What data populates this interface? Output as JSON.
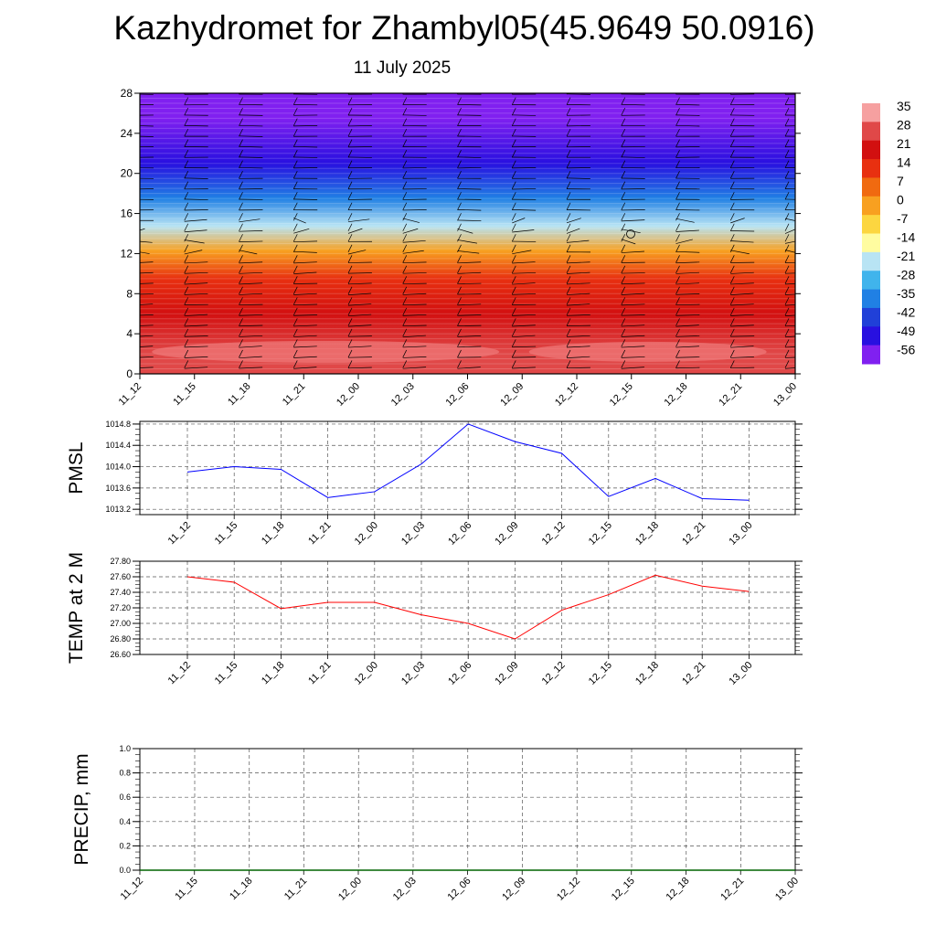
{
  "title": "Kazhydromet for Zhambyl05(45.9649 50.0916)",
  "subtitle": "11 July 2025",
  "colors": {
    "pmsl_line": "#0000ff",
    "temp_line": "#ff0000",
    "precip_line": "#006400",
    "grid": "#555555"
  },
  "colorbar": {
    "labels": [
      "35",
      "28",
      "21",
      "14",
      "7",
      "0",
      "-7",
      "-14",
      "-21",
      "-28",
      "-35",
      "-42",
      "-49",
      "-56"
    ],
    "colors": [
      "#f6a0a0",
      "#e04848",
      "#d21010",
      "#e83010",
      "#f06a10",
      "#f8a020",
      "#fcd640",
      "#fffca0",
      "#b8e4f4",
      "#40b4ec",
      "#2080e4",
      "#2040d8",
      "#2810e0",
      "#8020f0"
    ]
  },
  "chart_data": [
    {
      "type": "heatmap",
      "name": "cross-section",
      "x": [
        "11_12",
        "11_15",
        "11_18",
        "11_21",
        "12_00",
        "12_03",
        "12_06",
        "12_09",
        "12_12",
        "12_15",
        "12_18",
        "12_21",
        "13_00"
      ],
      "ylim": [
        0,
        28
      ],
      "yticks": [
        "0",
        "4",
        "8",
        "12",
        "16",
        "20",
        "24",
        "28"
      ],
      "value_range": [
        -56,
        35
      ],
      "bands": [
        {
          "y": [
            0,
            4
          ],
          "value": 30
        },
        {
          "y": [
            4,
            8
          ],
          "value": 24
        },
        {
          "y": [
            8,
            11
          ],
          "value": 14
        },
        {
          "y": [
            11,
            13.5
          ],
          "value": 3
        },
        {
          "y": [
            13.5,
            16
          ],
          "value": -18
        },
        {
          "y": [
            16,
            19
          ],
          "value": -35
        },
        {
          "y": [
            19,
            23
          ],
          "value": -52
        },
        {
          "y": [
            23,
            28
          ],
          "value": -58
        }
      ],
      "wind_barbs": "shown"
    },
    {
      "type": "line",
      "name": "pmsl",
      "ylabel": "PMSL",
      "x": [
        "11_12",
        "11_15",
        "11_18",
        "11_21",
        "12_00",
        "12_03",
        "12_06",
        "12_09",
        "12_12",
        "12_15",
        "12_18",
        "12_21",
        "13_00"
      ],
      "values": [
        1013.9,
        1014.0,
        1013.95,
        1013.42,
        1013.53,
        1014.05,
        1014.8,
        1014.47,
        1014.25,
        1013.44,
        1013.78,
        1013.4,
        1013.37
      ],
      "ylim": [
        1013.1,
        1014.85
      ],
      "yticks": [
        "1013.2",
        "1013.6",
        "1014.0",
        "1014.4",
        "1014.8"
      ],
      "grid": true
    },
    {
      "type": "line",
      "name": "temperature",
      "ylabel": "TEMP at 2 M",
      "x": [
        "11_12",
        "11_15",
        "11_18",
        "11_21",
        "12_00",
        "12_03",
        "12_06",
        "12_09",
        "12_12",
        "12_15",
        "12_18",
        "12_21",
        "13_00"
      ],
      "values": [
        27.6,
        27.53,
        27.19,
        27.27,
        27.27,
        27.11,
        27.0,
        26.8,
        27.17,
        27.37,
        27.62,
        27.48,
        27.41
      ],
      "ylim": [
        26.6,
        27.8
      ],
      "yticks": [
        "26.60",
        "26.80",
        "27.00",
        "27.20",
        "27.40",
        "27.60",
        "27.80"
      ],
      "grid": true
    },
    {
      "type": "line",
      "name": "precipitation",
      "ylabel": "PRECIP, mm",
      "x": [
        "11_12",
        "11_15",
        "11_18",
        "11_21",
        "12_00",
        "12_03",
        "12_06",
        "12_09",
        "12_12",
        "12_15",
        "12_18",
        "12_21",
        "13_00"
      ],
      "values": [
        0,
        0,
        0,
        0,
        0,
        0,
        0,
        0,
        0,
        0,
        0,
        0,
        0
      ],
      "ylim": [
        0,
        1
      ],
      "yticks": [
        "0.0",
        "0.2",
        "0.4",
        "0.6",
        "0.8",
        "1.0"
      ],
      "grid": true
    }
  ]
}
